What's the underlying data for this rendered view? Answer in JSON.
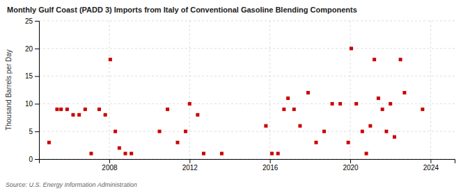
{
  "chart_data": {
    "type": "scatter",
    "title": "Monthly Gulf Coast (PADD 3) Imports from Italy of Conventional Gasoline Blending Components",
    "ylabel": "Thousand Barrels per Day",
    "annotations": [
      "Source: U.S. Energy Information Administration"
    ],
    "color": "#cc0000",
    "marker": "square",
    "grid": true,
    "xlim": [
      2004.5,
      2025.2
    ],
    "ylim": [
      0,
      25
    ],
    "xticks": [
      2008,
      2012,
      2016,
      2020,
      2024
    ],
    "yticks": [
      0,
      5,
      10,
      15,
      20,
      25
    ],
    "x": [
      2005.0,
      2005.4,
      2005.6,
      2005.9,
      2006.2,
      2006.5,
      2006.8,
      2007.1,
      2007.5,
      2007.8,
      2008.05,
      2008.3,
      2008.5,
      2008.8,
      2009.1,
      2010.5,
      2010.9,
      2011.4,
      2011.8,
      2012.0,
      2012.4,
      2012.7,
      2013.6,
      2015.8,
      2016.1,
      2016.4,
      2016.7,
      2016.9,
      2017.2,
      2017.5,
      2017.9,
      2018.3,
      2018.7,
      2019.1,
      2019.5,
      2019.9,
      2020.05,
      2020.3,
      2020.6,
      2020.8,
      2021.0,
      2021.2,
      2021.4,
      2021.6,
      2021.8,
      2022.0,
      2022.2,
      2022.5,
      2022.7,
      2023.6
    ],
    "y": [
      3,
      9,
      9,
      9,
      8,
      8,
      9,
      1,
      9,
      8,
      18,
      5,
      2,
      1,
      1,
      5,
      9,
      3,
      5,
      10,
      8,
      1,
      1,
      6,
      1,
      1,
      9,
      11,
      9,
      6,
      12,
      3,
      5,
      10,
      10,
      3,
      20,
      10,
      5,
      1,
      6,
      18,
      11,
      9,
      5,
      10,
      4,
      18,
      12,
      9
    ]
  }
}
